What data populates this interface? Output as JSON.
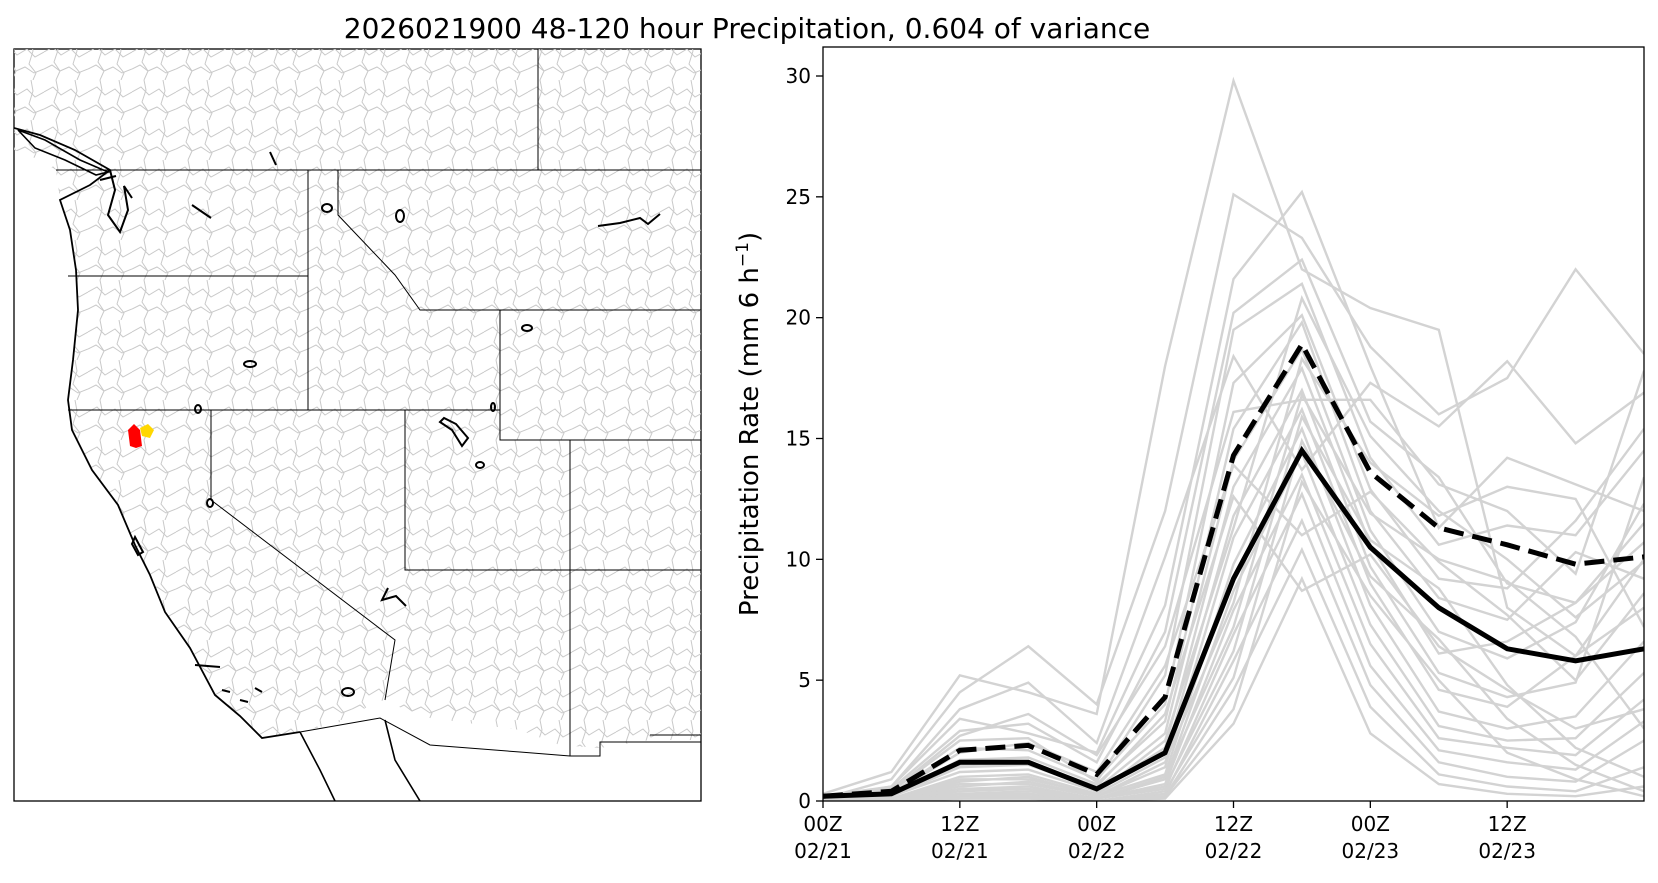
{
  "title": "2026021900 48-120 hour Precipitation, 0.604 of variance",
  "map": {
    "highlight_colors": [
      "#ff0000",
      "#ffd700"
    ]
  },
  "chart_data": {
    "type": "line",
    "ylabel": "Precipitation Rate (mm 6 h",
    "ylabel_sup": "−1",
    "ylabel_close": ")",
    "ylim": [
      0,
      31.2
    ],
    "yticks": [
      0,
      5,
      10,
      15,
      20,
      25,
      30
    ],
    "xlim": [
      0,
      72
    ],
    "x_hours": [
      0,
      6,
      12,
      18,
      24,
      30,
      36,
      42,
      48,
      54,
      60,
      66,
      72
    ],
    "xticks": [
      {
        "x": 0,
        "top": "00Z",
        "bottom": "02/21"
      },
      {
        "x": 12,
        "top": "12Z",
        "bottom": "02/21"
      },
      {
        "x": 24,
        "top": "00Z",
        "bottom": "02/22"
      },
      {
        "x": 36,
        "top": "12Z",
        "bottom": "02/22"
      },
      {
        "x": 48,
        "top": "00Z",
        "bottom": "02/23"
      },
      {
        "x": 60,
        "top": "12Z",
        "bottom": "02/23"
      }
    ],
    "mean": [
      0.2,
      0.3,
      1.6,
      1.6,
      0.5,
      2.0,
      9.2,
      14.5,
      10.5,
      8.0,
      6.3,
      5.8,
      6.3
    ],
    "upper": [
      0.2,
      0.4,
      2.1,
      2.3,
      1.1,
      4.3,
      14.3,
      18.9,
      13.6,
      11.3,
      10.6,
      9.8,
      10.1
    ],
    "colors": {
      "members": "#d3d3d3",
      "summary": "#000000"
    },
    "members": [
      [
        0.3,
        1.2,
        5.2,
        4.5,
        3.6,
        18.0,
        29.8,
        22.0,
        20.4,
        19.5,
        8.0,
        6.0,
        10.0
      ],
      [
        0.1,
        0.9,
        4.5,
        6.4,
        4.0,
        12.0,
        25.1,
        23.3,
        18.8,
        16.0,
        17.5,
        22.0,
        18.5
      ],
      [
        0.2,
        0.6,
        3.4,
        2.8,
        2.0,
        8.1,
        21.6,
        25.2,
        18.0,
        11.3,
        14.2,
        13.1,
        12.0
      ],
      [
        0.1,
        0.5,
        2.9,
        3.2,
        1.6,
        7.0,
        20.2,
        22.4,
        15.7,
        13.4,
        9.0,
        8.2,
        10.7
      ],
      [
        0.2,
        0.4,
        2.5,
        2.6,
        0.8,
        5.2,
        19.5,
        21.4,
        14.2,
        10.6,
        11.4,
        11.0,
        14.5
      ],
      [
        0.1,
        0.3,
        2.2,
        2.1,
        0.9,
        4.0,
        17.3,
        20.1,
        12.9,
        9.2,
        8.8,
        11.6,
        15.4
      ],
      [
        0.0,
        0.2,
        1.7,
        1.8,
        0.7,
        3.3,
        15.4,
        19.8,
        12.0,
        8.4,
        7.5,
        10.3,
        9.2
      ],
      [
        0.1,
        0.2,
        1.4,
        1.5,
        0.5,
        2.8,
        14.1,
        18.7,
        11.2,
        7.0,
        5.9,
        7.4,
        12.3
      ],
      [
        0.0,
        0.2,
        1.2,
        1.3,
        0.4,
        2.2,
        13.0,
        17.9,
        10.6,
        6.1,
        6.6,
        8.2,
        11.5
      ],
      [
        0.0,
        0.1,
        1.0,
        1.1,
        0.3,
        1.8,
        11.8,
        17.0,
        9.7,
        5.3,
        4.3,
        4.9,
        13.4
      ],
      [
        0.0,
        0.1,
        0.8,
        1.0,
        0.2,
        1.4,
        10.9,
        16.2,
        9.0,
        4.6,
        3.9,
        6.0,
        8.0
      ],
      [
        0.0,
        0.1,
        0.6,
        0.8,
        0.2,
        1.1,
        9.8,
        15.4,
        8.1,
        3.7,
        3.0,
        3.5,
        6.6
      ],
      [
        0.0,
        0.1,
        0.5,
        0.6,
        0.1,
        0.9,
        8.7,
        14.4,
        7.3,
        3.1,
        2.5,
        2.6,
        5.3
      ],
      [
        0.0,
        0.0,
        0.4,
        0.5,
        0.1,
        0.7,
        7.9,
        13.5,
        6.5,
        2.6,
        2.2,
        1.9,
        4.2
      ],
      [
        0.0,
        0.0,
        0.3,
        0.4,
        0.1,
        0.5,
        6.9,
        12.7,
        5.6,
        2.1,
        1.6,
        1.3,
        3.3
      ],
      [
        0.0,
        0.0,
        0.2,
        0.3,
        0.0,
        0.3,
        5.8,
        11.6,
        4.8,
        1.6,
        1.0,
        0.8,
        2.5
      ],
      [
        0.0,
        0.0,
        0.1,
        0.2,
        0.0,
        0.2,
        4.6,
        10.4,
        3.9,
        1.1,
        0.6,
        0.4,
        1.4
      ],
      [
        0.0,
        0.0,
        0.1,
        0.1,
        0.0,
        0.1,
        3.2,
        9.2,
        2.8,
        0.7,
        0.3,
        0.2,
        0.6
      ],
      [
        0.1,
        0.6,
        3.8,
        4.9,
        2.4,
        10.1,
        18.4,
        13.7,
        17.3,
        15.5,
        18.2,
        14.8,
        16.9
      ],
      [
        0.1,
        0.4,
        2.7,
        3.6,
        1.9,
        6.4,
        16.1,
        16.6,
        16.6,
        13.1,
        12.0,
        9.4,
        17.8
      ],
      [
        0.0,
        0.3,
        2.0,
        2.4,
        1.2,
        5.6,
        13.9,
        11.0,
        12.8,
        9.9,
        7.7,
        5.0,
        8.6
      ],
      [
        0.0,
        0.2,
        1.5,
        1.6,
        0.6,
        3.6,
        12.6,
        8.7,
        10.2,
        6.4,
        4.6,
        3.0,
        3.8
      ],
      [
        0.0,
        0.1,
        0.9,
        0.9,
        0.3,
        2.5,
        11.3,
        20.8,
        15.1,
        12.0,
        10.0,
        7.6,
        9.9
      ],
      [
        0.0,
        0.1,
        0.7,
        0.7,
        0.2,
        1.6,
        8.2,
        18.3,
        14.0,
        11.8,
        13.0,
        12.5,
        7.2
      ],
      [
        0.0,
        0.0,
        0.5,
        0.5,
        0.1,
        1.0,
        7.2,
        16.8,
        11.9,
        10.0,
        9.1,
        6.8,
        3.0
      ],
      [
        0.0,
        0.0,
        0.3,
        0.3,
        0.1,
        0.6,
        6.2,
        15.9,
        10.8,
        8.8,
        4.8,
        2.2,
        1.0
      ],
      [
        0.0,
        0.0,
        0.2,
        0.2,
        0.0,
        0.4,
        5.1,
        14.9,
        9.3,
        6.7,
        3.4,
        1.5,
        0.4
      ],
      [
        0.0,
        0.0,
        0.1,
        0.1,
        0.0,
        0.2,
        3.8,
        13.2,
        8.5,
        5.0,
        2.0,
        0.9,
        0.2
      ]
    ]
  }
}
